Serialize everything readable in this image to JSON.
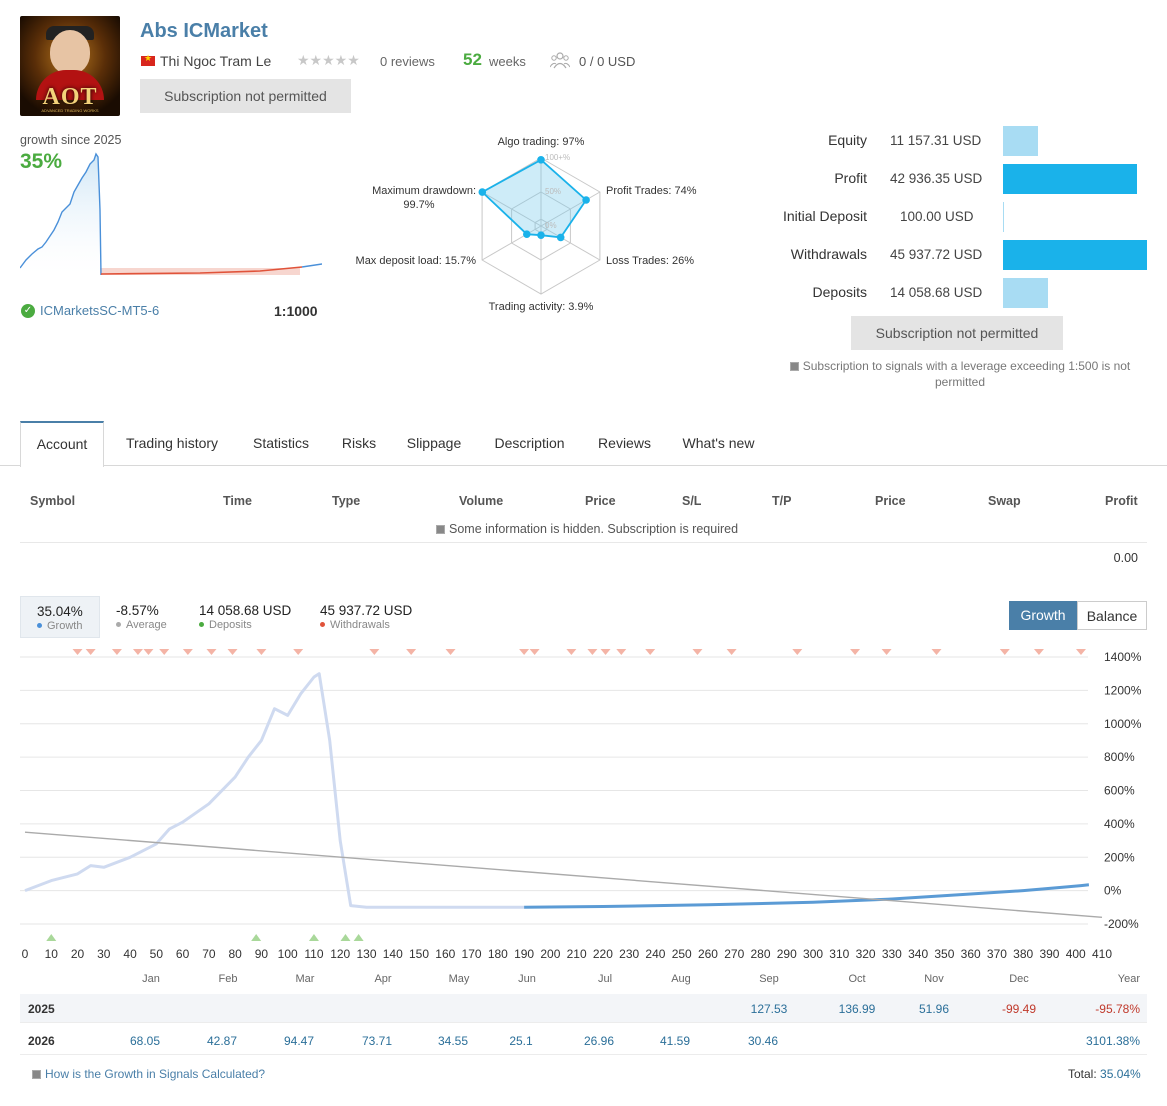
{
  "header": {
    "title": "Abs ICMarket",
    "author": "Thi Ngoc Tram Le",
    "stars": "★★★★★",
    "reviews": "0 reviews",
    "weeks_num": "52",
    "weeks_label": "weeks",
    "subscribers": "0 / 0 USD",
    "subscribe_btn": "Subscription not permitted",
    "avatar_logo": "AOT",
    "avatar_sub": "ADVANCED TRADING WORKS"
  },
  "growth_summary": {
    "label": "growth since 2025",
    "value": "35%",
    "server": "ICMarketsSC-MT5-6",
    "leverage": "1:1000"
  },
  "radar": {
    "algo": "Algo trading: 97%",
    "profit_trades": "Profit Trades: 74%",
    "loss_trades": "Loss Trades: 26%",
    "activity": "Trading activity: 3.9%",
    "deposit_load": "Max deposit load: 15.7%",
    "drawdown_l1": "Maximum drawdown:",
    "drawdown_l2": "99.7%",
    "ring_100": "100+%",
    "ring_50": "50%",
    "ring_0": "0%",
    "values": {
      "algo": 97,
      "profit": 74,
      "loss": 26,
      "activity": 3.9,
      "load": 15.7,
      "drawdown": 99.7
    }
  },
  "stats": [
    {
      "label": "Equity",
      "value": "11 157.31 USD",
      "fraction": 0.24,
      "color": "#a8dcf3"
    },
    {
      "label": "Profit",
      "value": "42 936.35 USD",
      "fraction": 0.93,
      "color": "#1ab2ea"
    },
    {
      "label": "Initial Deposit",
      "value": "100.00 USD",
      "fraction": 0.004,
      "color": "#a8dcf3"
    },
    {
      "label": "Withdrawals",
      "value": "45 937.72 USD",
      "fraction": 1.0,
      "color": "#1ab2ea"
    },
    {
      "label": "Deposits",
      "value": "14 058.68 USD",
      "fraction": 0.31,
      "color": "#a8dcf3"
    }
  ],
  "right_btn": "Subscription not permitted",
  "notice": "Subscription to signals with a leverage exceeding 1:500 is not permitted",
  "tabs": [
    "Account",
    "Trading history",
    "Statistics",
    "Risks",
    "Slippage",
    "Description",
    "Reviews",
    "What's new"
  ],
  "table": {
    "headers": [
      "Symbol",
      "Time",
      "Type",
      "Volume",
      "Price",
      "S/L",
      "T/P",
      "Price",
      "Swap",
      "Profit"
    ],
    "hidden_msg": "Some information is hidden. Subscription is required",
    "total": "0.00"
  },
  "legend": [
    {
      "value": "35.04%",
      "label": "Growth",
      "color": "#4a90d9"
    },
    {
      "value": "-8.57%",
      "label": "Average",
      "color": "#aaaaaa"
    },
    {
      "value": "14 058.68 USD",
      "label": "Deposits",
      "color": "#4bab40"
    },
    {
      "value": "45 937.72 USD",
      "label": "Withdrawals",
      "color": "#e0533a"
    }
  ],
  "toggle": {
    "growth": "Growth",
    "balance": "Balance"
  },
  "chart_data": {
    "type": "line",
    "title": "",
    "xlabel": "",
    "ylabel": "",
    "x_ticks": [
      0,
      10,
      20,
      30,
      40,
      50,
      60,
      70,
      80,
      90,
      100,
      110,
      120,
      130,
      140,
      150,
      160,
      170,
      180,
      190,
      200,
      210,
      220,
      230,
      240,
      250,
      260,
      270,
      280,
      290,
      300,
      310,
      320,
      330,
      340,
      350,
      360,
      370,
      380,
      390,
      400,
      410
    ],
    "y_ticks": [
      "1400%",
      "1200%",
      "1000%",
      "800%",
      "600%",
      "400%",
      "200%",
      "0%",
      "-200%"
    ],
    "ylim": [
      -200,
      1400
    ],
    "xlim": [
      0,
      410
    ],
    "series": [
      {
        "name": "Growth",
        "x": [
          0,
          10,
          20,
          25,
          30,
          40,
          50,
          55,
          60,
          70,
          80,
          85,
          90,
          95,
          100,
          105,
          110,
          112,
          116,
          120,
          124,
          130,
          190
        ],
        "y": [
          0,
          60,
          100,
          150,
          140,
          200,
          280,
          370,
          410,
          520,
          680,
          800,
          900,
          1090,
          1050,
          1180,
          1280,
          1300,
          900,
          300,
          -90,
          -100,
          -100
        ]
      },
      {
        "name": "Growth (recent)",
        "x": [
          190,
          220,
          260,
          300,
          330,
          360,
          380,
          395,
          402,
          405
        ],
        "y": [
          -100,
          -95,
          -85,
          -70,
          -50,
          -20,
          0,
          20,
          30,
          35
        ]
      },
      {
        "name": "Trend",
        "x": [
          0,
          410
        ],
        "y": [
          350,
          -160
        ]
      }
    ],
    "withdrawal_markers_x": [
      20,
      25,
      35,
      43,
      47,
      53,
      62,
      71,
      79,
      90,
      104,
      133,
      147,
      162,
      190,
      194,
      208,
      216,
      221,
      227,
      238,
      256,
      269,
      294,
      316,
      328,
      347,
      373,
      386,
      402
    ],
    "deposit_markers_x": [
      10,
      88,
      110,
      122,
      127
    ]
  },
  "months": {
    "headers": [
      "Jan",
      "Feb",
      "Mar",
      "Apr",
      "May",
      "Jun",
      "Jul",
      "Aug",
      "Sep",
      "Oct",
      "Nov",
      "Dec",
      "Year"
    ],
    "rows": [
      {
        "year": "2025",
        "values": [
          "",
          "",
          "",
          "",
          "",
          "",
          "",
          "",
          "127.53",
          "136.99",
          "51.96",
          "-99.49"
        ],
        "total": "-95.78%"
      },
      {
        "year": "2026",
        "values": [
          "68.05",
          "42.87",
          "94.47",
          "73.71",
          "34.55",
          "25.1",
          "26.96",
          "41.59",
          "30.46",
          "",
          "",
          ""
        ],
        "total": "3101.38%"
      }
    ]
  },
  "footer": {
    "howto": "How is the Growth in Signals Calculated?",
    "total_label": "Total:",
    "total_value": "35.04%"
  }
}
